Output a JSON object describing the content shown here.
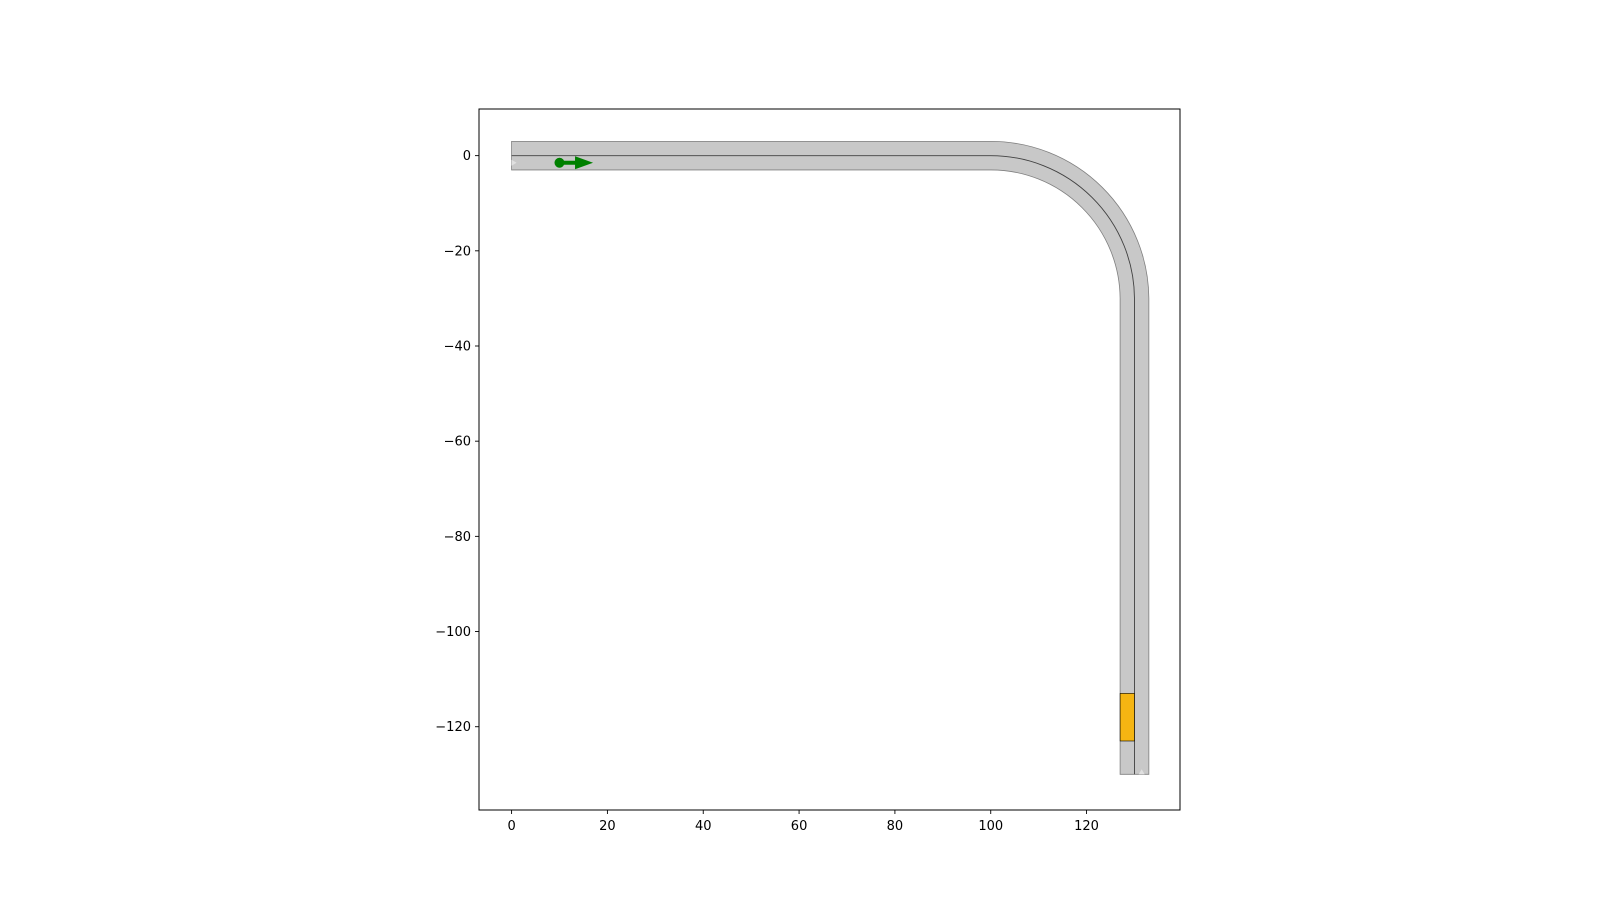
{
  "chart_data": {
    "type": "scatter",
    "title": "",
    "xlabel": "",
    "ylabel": "",
    "xlim": [
      -6.8,
      139.5
    ],
    "ylim": [
      -137.5,
      9.8
    ],
    "aspect": "equal",
    "grid": false,
    "x_ticks": [
      {
        "value": 0,
        "label": "0"
      },
      {
        "value": 20,
        "label": "20"
      },
      {
        "value": 40,
        "label": "40"
      },
      {
        "value": 60,
        "label": "60"
      },
      {
        "value": 80,
        "label": "80"
      },
      {
        "value": 100,
        "label": "100"
      },
      {
        "value": 120,
        "label": "120"
      }
    ],
    "y_ticks": [
      {
        "value": 0,
        "label": "0"
      },
      {
        "value": -20,
        "label": "−20"
      },
      {
        "value": -40,
        "label": "−40"
      },
      {
        "value": -60,
        "label": "−60"
      },
      {
        "value": -80,
        "label": "−80"
      },
      {
        "value": -100,
        "label": "−100"
      },
      {
        "value": -120,
        "label": "−120"
      }
    ],
    "road": {
      "straight_1": {
        "from": [
          0,
          0
        ],
        "to": [
          100,
          0
        ]
      },
      "turn": {
        "center": [
          100,
          -30
        ],
        "radius": 30,
        "from_deg": 90,
        "to_deg": 0
      },
      "straight_2": {
        "from": [
          130,
          -30
        ],
        "to": [
          130,
          -130
        ]
      },
      "half_width": 3,
      "fill_color": "#c8c8c8",
      "edge_color": "#7f7f7f",
      "lane_line_color": "#404040"
    },
    "vehicle": {
      "x_start": 10,
      "x_end": 17,
      "y": -1.5,
      "color": "#008000"
    },
    "obstacle": {
      "x_min": 127,
      "x_max": 130,
      "y_min": -123,
      "y_max": -113,
      "color": "#f5b512"
    }
  }
}
